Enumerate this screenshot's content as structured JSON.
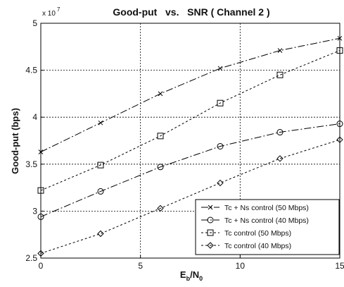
{
  "chart_data": {
    "type": "line",
    "title": "Good-put   vs.   SNR ( Channel 2 )",
    "xlabel": {
      "main": "E",
      "sub1": "b",
      "sep": "/N",
      "sub2": "0"
    },
    "ylabel": "Good-put (bps)",
    "y_multiplier": "x 10",
    "y_multiplier_exp": "7",
    "xlim": [
      0,
      15
    ],
    "ylim": [
      2.5,
      5
    ],
    "x_ticks": [
      "0",
      "5",
      "10",
      "15"
    ],
    "y_ticks": [
      "2.5",
      "3",
      "3.5",
      "4",
      "4.5",
      "5"
    ],
    "grid": true,
    "legend_position": "bottom-right",
    "series": [
      {
        "name": "Tc + Ns  control (50 Mbps)",
        "marker": "x",
        "dash": "10 3 2 3",
        "x": [
          0,
          3,
          6,
          9,
          12,
          15
        ],
        "y": [
          3.63,
          3.94,
          4.25,
          4.52,
          4.71,
          4.84
        ]
      },
      {
        "name": "Tc + Ns  control (40 Mbps)",
        "marker": "circle",
        "dash": "10 3 2 3",
        "x": [
          0,
          3,
          6,
          9,
          12,
          15
        ],
        "y": [
          2.94,
          3.21,
          3.47,
          3.69,
          3.84,
          3.93
        ]
      },
      {
        "name": "Tc  control (50 Mbps)",
        "marker": "square",
        "dash": "3 3",
        "x": [
          0,
          3,
          6,
          9,
          12,
          15
        ],
        "y": [
          3.22,
          3.49,
          3.8,
          4.15,
          4.45,
          4.71
        ]
      },
      {
        "name": "Tc  control (40 Mbps)",
        "marker": "diamond",
        "dash": "3 3",
        "x": [
          0,
          3,
          6,
          9,
          12,
          15
        ],
        "y": [
          2.55,
          2.76,
          3.03,
          3.3,
          3.56,
          3.76
        ]
      }
    ]
  }
}
